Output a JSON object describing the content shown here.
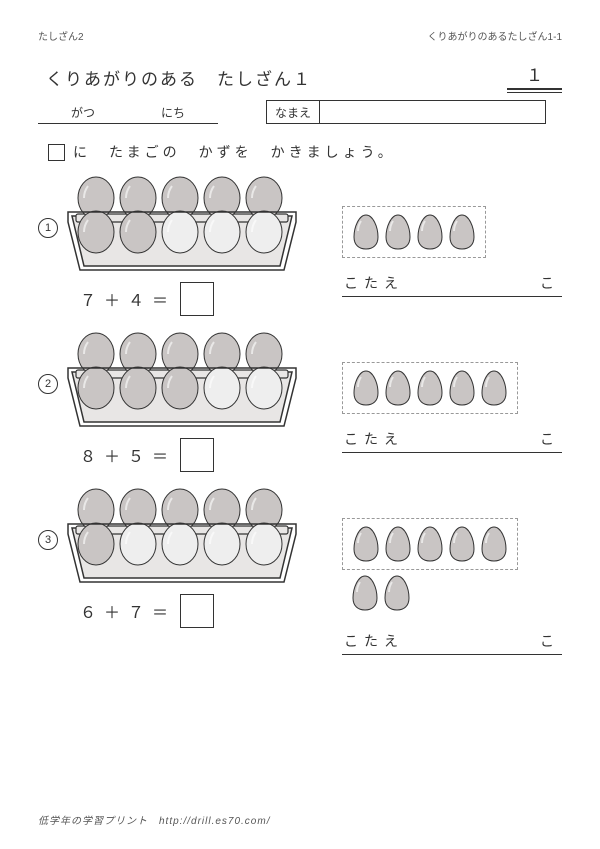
{
  "header": {
    "left": "たしざん2",
    "right": "くりあがりのあるたしざん1-1"
  },
  "title": "くりあがりのある　たしざん１",
  "page_number": "１",
  "date_labels": {
    "month": "がつ",
    "day": "にち"
  },
  "name_label": "なまえ",
  "instruction": "に　たまごの　かずを　かきましょう。",
  "answer_label": "こたえ",
  "answer_unit": "こ",
  "footer": "低学年の学習プリント　http://drill.es70.com/",
  "colors": {
    "egg_fill": "#c9c5c4",
    "egg_stroke": "#333333",
    "empty_fill": "#eeeeee",
    "tray_fill": "#e8e6e5",
    "tray_stroke": "#333333"
  },
  "problems": [
    {
      "circled": "①",
      "a": "７",
      "b": "４",
      "op": "＋",
      "eq": "＝",
      "tray_filled": 7,
      "tray_layout": [
        [
          1,
          1,
          1,
          1,
          1
        ],
        [
          1,
          1,
          0,
          0,
          0
        ]
      ],
      "loose_eggs": 4,
      "extra_eggs": 0
    },
    {
      "circled": "②",
      "a": "８",
      "b": "５",
      "op": "＋",
      "eq": "＝",
      "tray_filled": 8,
      "tray_layout": [
        [
          1,
          1,
          1,
          1,
          1
        ],
        [
          1,
          1,
          1,
          0,
          0
        ]
      ],
      "loose_eggs": 5,
      "extra_eggs": 0
    },
    {
      "circled": "③",
      "a": "６",
      "b": "７",
      "op": "＋",
      "eq": "＝",
      "tray_filled": 6,
      "tray_layout": [
        [
          1,
          1,
          1,
          1,
          1
        ],
        [
          1,
          0,
          0,
          0,
          0
        ]
      ],
      "loose_eggs": 5,
      "extra_eggs": 2
    }
  ]
}
